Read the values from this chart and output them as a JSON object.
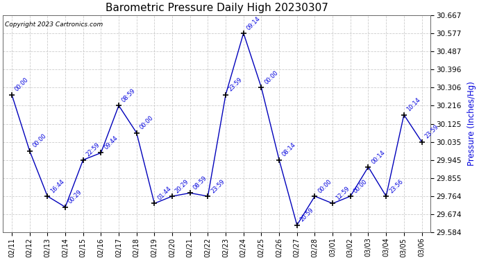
{
  "title": "Barometric Pressure Daily High 20230307",
  "ylabel": "Pressure (Inches/Hg)",
  "copyright": "Copyright 2023 Cartronics.com",
  "line_color": "#0000bb",
  "annotation_color": "#0000dd",
  "marker_color": "#000000",
  "background_color": "#ffffff",
  "grid_color": "#cccccc",
  "dates": [
    "02/11",
    "02/12",
    "02/13",
    "02/14",
    "02/15",
    "02/16",
    "02/17",
    "02/18",
    "02/19",
    "02/20",
    "02/21",
    "02/22",
    "02/23",
    "02/24",
    "02/25",
    "02/26",
    "02/27",
    "02/28",
    "03/01",
    "03/02",
    "03/03",
    "03/04",
    "03/05",
    "03/06"
  ],
  "values": [
    30.27,
    29.99,
    29.764,
    29.71,
    29.945,
    29.98,
    30.216,
    30.08,
    29.728,
    29.764,
    29.78,
    29.764,
    30.27,
    30.577,
    30.306,
    29.945,
    29.62,
    29.764,
    29.728,
    29.764,
    29.91,
    29.764,
    30.17,
    30.035
  ],
  "annotations": [
    "00:00",
    "00:00",
    "16:44",
    "00:29",
    "22:59",
    "09:44",
    "08:59",
    "00:00",
    "01:44",
    "20:29",
    "08:59",
    "23:59",
    "23:59",
    "09:14",
    "00:00",
    "08:14",
    "20:59",
    "00:00",
    "12:59",
    "00:00",
    "00:14",
    "23:56",
    "10:14",
    "23:59"
  ],
  "ylim": [
    29.584,
    30.667
  ],
  "yticks": [
    29.584,
    29.674,
    29.764,
    29.855,
    29.945,
    30.035,
    30.125,
    30.216,
    30.306,
    30.396,
    30.487,
    30.577,
    30.667
  ]
}
